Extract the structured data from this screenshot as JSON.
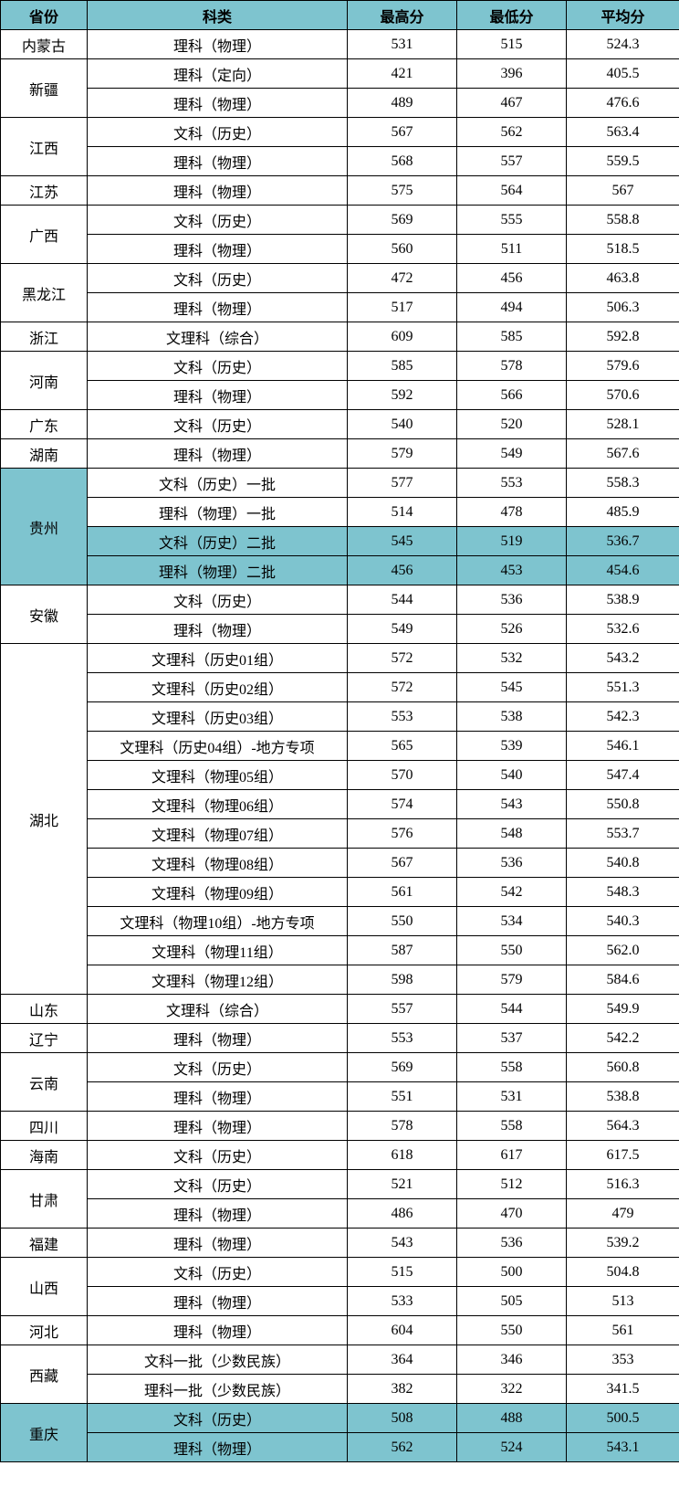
{
  "headers": {
    "province": "省份",
    "category": "科类",
    "max": "最高分",
    "min": "最低分",
    "avg": "平均分"
  },
  "colors": {
    "header_bg": "#7ec4cf",
    "border": "#000000",
    "bg": "#ffffff"
  },
  "rows": [
    {
      "province": "内蒙古",
      "rowspan": 1,
      "category": "理科（物理）",
      "max": "531",
      "min": "515",
      "avg": "524.3"
    },
    {
      "province": "新疆",
      "rowspan": 2,
      "category": "理科（定向）",
      "max": "421",
      "min": "396",
      "avg": "405.5"
    },
    {
      "category": "理科（物理）",
      "max": "489",
      "min": "467",
      "avg": "476.6"
    },
    {
      "province": "江西",
      "rowspan": 2,
      "category": "文科（历史）",
      "max": "567",
      "min": "562",
      "avg": "563.4"
    },
    {
      "category": "理科（物理）",
      "max": "568",
      "min": "557",
      "avg": "559.5"
    },
    {
      "province": "江苏",
      "rowspan": 1,
      "category": "理科（物理）",
      "max": "575",
      "min": "564",
      "avg": "567"
    },
    {
      "province": "广西",
      "rowspan": 2,
      "category": "文科（历史）",
      "max": "569",
      "min": "555",
      "avg": "558.8"
    },
    {
      "category": "理科（物理）",
      "max": "560",
      "min": "511",
      "avg": "518.5"
    },
    {
      "province": "黑龙江",
      "rowspan": 2,
      "category": "文科（历史）",
      "max": "472",
      "min": "456",
      "avg": "463.8"
    },
    {
      "category": "理科（物理）",
      "max": "517",
      "min": "494",
      "avg": "506.3"
    },
    {
      "province": "浙江",
      "rowspan": 1,
      "category": "文理科（综合）",
      "max": "609",
      "min": "585",
      "avg": "592.8"
    },
    {
      "province": "河南",
      "rowspan": 2,
      "category": "文科（历史）",
      "max": "585",
      "min": "578",
      "avg": "579.6"
    },
    {
      "category": "理科（物理）",
      "max": "592",
      "min": "566",
      "avg": "570.6"
    },
    {
      "province": "广东",
      "rowspan": 1,
      "category": "文科（历史）",
      "max": "540",
      "min": "520",
      "avg": "528.1"
    },
    {
      "province": "湖南",
      "rowspan": 1,
      "category": "理科（物理）",
      "max": "579",
      "min": "549",
      "avg": "567.6"
    },
    {
      "province": "贵州",
      "rowspan": 4,
      "province_hl": true,
      "category": "文科（历史）一批",
      "max": "577",
      "min": "553",
      "avg": "558.3"
    },
    {
      "category": "理科（物理）一批",
      "max": "514",
      "min": "478",
      "avg": "485.9"
    },
    {
      "category": "文科（历史）二批",
      "max": "545",
      "min": "519",
      "avg": "536.7",
      "row_hl": true
    },
    {
      "category": "理科（物理）二批",
      "max": "456",
      "min": "453",
      "avg": "454.6",
      "row_hl": true
    },
    {
      "province": "安徽",
      "rowspan": 2,
      "category": "文科（历史）",
      "max": "544",
      "min": "536",
      "avg": "538.9"
    },
    {
      "category": "理科（物理）",
      "max": "549",
      "min": "526",
      "avg": "532.6"
    },
    {
      "province": "湖北",
      "rowspan": 12,
      "category": "文理科（历史01组）",
      "max": "572",
      "min": "532",
      "avg": "543.2"
    },
    {
      "category": "文理科（历史02组）",
      "max": "572",
      "min": "545",
      "avg": "551.3"
    },
    {
      "category": "文理科（历史03组）",
      "max": "553",
      "min": "538",
      "avg": "542.3"
    },
    {
      "category": "文理科（历史04组）-地方专项",
      "max": "565",
      "min": "539",
      "avg": "546.1"
    },
    {
      "category": "文理科（物理05组）",
      "max": "570",
      "min": "540",
      "avg": "547.4"
    },
    {
      "category": "文理科（物理06组）",
      "max": "574",
      "min": "543",
      "avg": "550.8"
    },
    {
      "category": "文理科（物理07组）",
      "max": "576",
      "min": "548",
      "avg": "553.7"
    },
    {
      "category": "文理科（物理08组）",
      "max": "567",
      "min": "536",
      "avg": "540.8"
    },
    {
      "category": "文理科（物理09组）",
      "max": "561",
      "min": "542",
      "avg": "548.3"
    },
    {
      "category": "文理科（物理10组）-地方专项",
      "max": "550",
      "min": "534",
      "avg": "540.3"
    },
    {
      "category": "文理科（物理11组）",
      "max": "587",
      "min": "550",
      "avg": "562.0"
    },
    {
      "category": "文理科（物理12组）",
      "max": "598",
      "min": "579",
      "avg": "584.6"
    },
    {
      "province": "山东",
      "rowspan": 1,
      "category": "文理科（综合）",
      "max": "557",
      "min": "544",
      "avg": "549.9"
    },
    {
      "province": "辽宁",
      "rowspan": 1,
      "category": "理科（物理）",
      "max": "553",
      "min": "537",
      "avg": "542.2"
    },
    {
      "province": "云南",
      "rowspan": 2,
      "category": "文科（历史）",
      "max": "569",
      "min": "558",
      "avg": "560.8"
    },
    {
      "category": "理科（物理）",
      "max": "551",
      "min": "531",
      "avg": "538.8"
    },
    {
      "province": "四川",
      "rowspan": 1,
      "category": "理科（物理）",
      "max": "578",
      "min": "558",
      "avg": "564.3"
    },
    {
      "province": "海南",
      "rowspan": 1,
      "category": "文科（历史）",
      "max": "618",
      "min": "617",
      "avg": "617.5"
    },
    {
      "province": "甘肃",
      "rowspan": 2,
      "category": "文科（历史）",
      "max": "521",
      "min": "512",
      "avg": "516.3"
    },
    {
      "category": "理科（物理）",
      "max": "486",
      "min": "470",
      "avg": "479"
    },
    {
      "province": "福建",
      "rowspan": 1,
      "category": "理科（物理）",
      "max": "543",
      "min": "536",
      "avg": "539.2"
    },
    {
      "province": "山西",
      "rowspan": 2,
      "category": "文科（历史）",
      "max": "515",
      "min": "500",
      "avg": "504.8"
    },
    {
      "category": "理科（物理）",
      "max": "533",
      "min": "505",
      "avg": "513"
    },
    {
      "province": "河北",
      "rowspan": 1,
      "category": "理科（物理）",
      "max": "604",
      "min": "550",
      "avg": "561"
    },
    {
      "province": "西藏",
      "rowspan": 2,
      "category": "文科一批（少数民族）",
      "max": "364",
      "min": "346",
      "avg": "353"
    },
    {
      "category": "理科一批（少数民族）",
      "max": "382",
      "min": "322",
      "avg": "341.5"
    },
    {
      "province": "重庆",
      "rowspan": 2,
      "province_hl": true,
      "category": "文科（历史）",
      "max": "508",
      "min": "488",
      "avg": "500.5",
      "row_hl": true
    },
    {
      "category": "理科（物理）",
      "max": "562",
      "min": "524",
      "avg": "543.1",
      "row_hl": true
    }
  ]
}
